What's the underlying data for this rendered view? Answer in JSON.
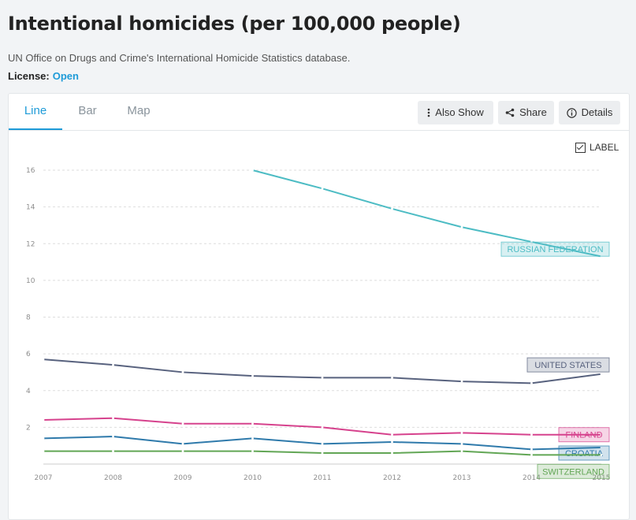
{
  "header": {
    "title": "Intentional homicides (per 100,000 people)",
    "source": "UN Office on Drugs and Crime's International Homicide Statistics database.",
    "license_label": "License:",
    "license_value": "Open"
  },
  "tabs": [
    {
      "label": "Line",
      "active": true
    },
    {
      "label": "Bar",
      "active": false
    },
    {
      "label": "Map",
      "active": false
    }
  ],
  "toolbar": {
    "also_show": "Also Show",
    "share": "Share",
    "details": "Details"
  },
  "label_toggle": {
    "label": "LABEL",
    "checked": true
  },
  "colors": {
    "accent": "#1e9bd8",
    "russia": "#4dbcc4",
    "usa": "#58627e",
    "finland": "#d6428d",
    "croatia": "#2f7aab",
    "switzerland": "#62a655"
  },
  "chart_data": {
    "type": "line",
    "title": "Intentional homicides (per 100,000 people)",
    "x": [
      2007,
      2008,
      2009,
      2010,
      2011,
      2012,
      2013,
      2014,
      2015
    ],
    "xlim": [
      2007,
      2015
    ],
    "ylim": [
      0,
      16
    ],
    "yticks": [
      2,
      4,
      6,
      8,
      10,
      12,
      14,
      16
    ],
    "grid": true,
    "series": [
      {
        "name": "RUSSIAN FEDERATION",
        "color": "#4dbcc4",
        "values": [
          null,
          null,
          null,
          16.0,
          15.0,
          13.9,
          12.9,
          12.1,
          11.3
        ]
      },
      {
        "name": "UNITED STATES",
        "color": "#58627e",
        "values": [
          5.7,
          5.4,
          5.0,
          4.8,
          4.7,
          4.7,
          4.5,
          4.4,
          4.9
        ]
      },
      {
        "name": "FINLAND",
        "color": "#d6428d",
        "values": [
          2.4,
          2.5,
          2.2,
          2.2,
          2.0,
          1.6,
          1.7,
          1.6,
          1.6
        ]
      },
      {
        "name": "CROATIA",
        "color": "#2f7aab",
        "values": [
          1.4,
          1.5,
          1.1,
          1.4,
          1.1,
          1.2,
          1.1,
          0.8,
          0.9
        ]
      },
      {
        "name": "SWITZERLAND",
        "color": "#62a655",
        "values": [
          0.7,
          0.7,
          0.7,
          0.7,
          0.6,
          0.6,
          0.7,
          0.5,
          0.5
        ]
      }
    ]
  }
}
